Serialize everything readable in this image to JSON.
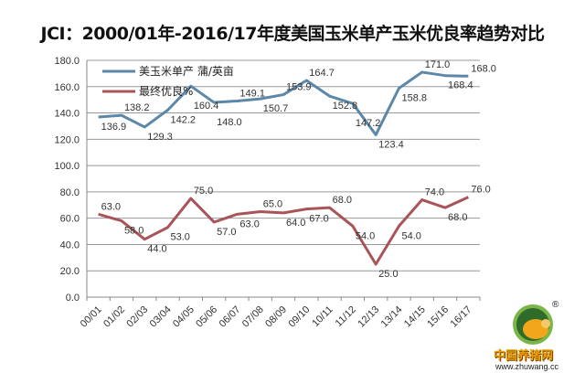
{
  "chart_data": {
    "type": "line",
    "title": "JCI：2000/01年-2016/17年度美国玉米单产玉米优良率趋势对比",
    "categories": [
      "00/01",
      "01/02",
      "02/03",
      "03/04",
      "04/05",
      "05/06",
      "06/07",
      "07/08",
      "08/09",
      "09/10",
      "10/11",
      "11/12",
      "12/13",
      "13/14",
      "14/15",
      "15/16",
      "16/17"
    ],
    "series": [
      {
        "name": "美玉米单产 蒲/英亩",
        "color": "#5b87a8",
        "values": [
          136.9,
          138.2,
          129.3,
          142.2,
          160.4,
          148.0,
          149.1,
          150.7,
          153.9,
          164.7,
          152.8,
          147.2,
          123.4,
          158.8,
          171.0,
          168.4,
          168.0
        ]
      },
      {
        "name": "最终优良%",
        "color": "#a85458",
        "values": [
          63.0,
          58.0,
          44.0,
          53.0,
          75.0,
          57.0,
          63.0,
          65.0,
          64.0,
          67.0,
          68.0,
          54.0,
          25.0,
          54.0,
          74.0,
          68.0,
          76.0
        ]
      }
    ],
    "ylim": [
      0,
      180
    ],
    "yticks": [
      "0.0",
      "20.0",
      "40.0",
      "60.0",
      "80.0",
      "100.0",
      "120.0",
      "140.0",
      "160.0",
      "180.0"
    ],
    "grid": true,
    "legend": "top-left"
  },
  "logo": {
    "text": "中国养猪网",
    "url": "www.zhuwang.cc",
    "mark": "®"
  }
}
